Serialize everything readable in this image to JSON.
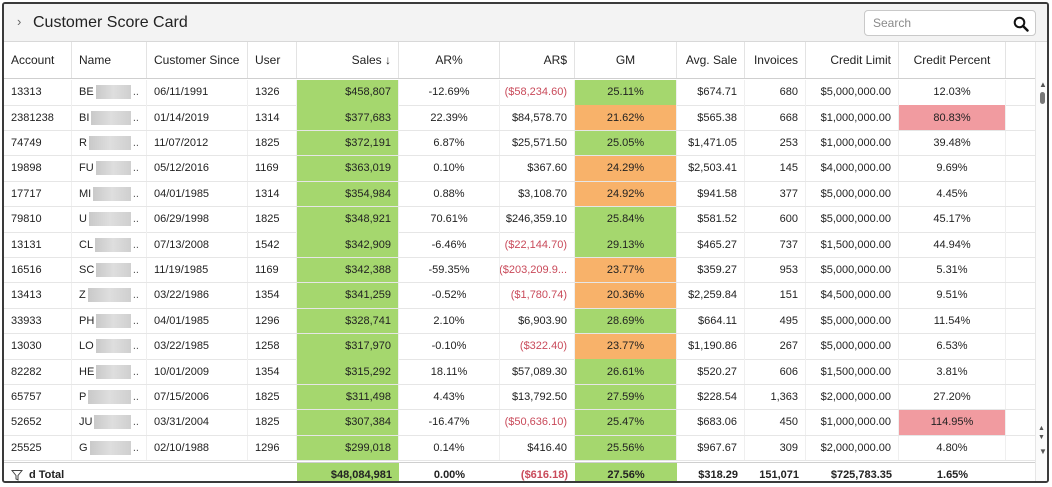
{
  "header": {
    "title": "Customer Score Card",
    "search_placeholder": "Search"
  },
  "colors": {
    "green": "#a5d76e",
    "orange": "#f8b26a",
    "red": "#f19ba0",
    "negative_text": "#c94a5a"
  },
  "columns": [
    "Account",
    "Name",
    "Customer Since",
    "User",
    "Sales ↓",
    "AR%",
    "AR$",
    "GM",
    "Avg. Sale",
    "Invoices",
    "Credit Limit",
    "Credit Percent"
  ],
  "rows": [
    {
      "account": "13313",
      "name": "BE",
      "since": "06/11/1991",
      "user": "1326",
      "sales": "$458,807",
      "arpct": "-12.69%",
      "ardol": "($58,234.60)",
      "gm": "25.11%",
      "avg": "$674.71",
      "inv": "680",
      "limit": "$5,000,000.00",
      "credit": "12.03%",
      "gm_level": "green",
      "credit_level": "none",
      "ar_neg": true
    },
    {
      "account": "2381238",
      "name": "BI",
      "since": "01/14/2019",
      "user": "1314",
      "sales": "$377,683",
      "arpct": "22.39%",
      "ardol": "$84,578.70",
      "gm": "21.62%",
      "avg": "$565.38",
      "inv": "668",
      "limit": "$1,000,000.00",
      "credit": "80.83%",
      "gm_level": "orange",
      "credit_level": "red",
      "ar_neg": false
    },
    {
      "account": "74749",
      "name": "R",
      "since": "11/07/2012",
      "user": "1825",
      "sales": "$372,191",
      "arpct": "6.87%",
      "ardol": "$25,571.50",
      "gm": "25.05%",
      "avg": "$1,471.05",
      "inv": "253",
      "limit": "$1,000,000.00",
      "credit": "39.48%",
      "gm_level": "green",
      "credit_level": "none",
      "ar_neg": false
    },
    {
      "account": "19898",
      "name": "FU",
      "since": "05/12/2016",
      "user": "1169",
      "sales": "$363,019",
      "arpct": "0.10%",
      "ardol": "$367.60",
      "gm": "24.29%",
      "avg": "$2,503.41",
      "inv": "145",
      "limit": "$4,000,000.00",
      "credit": "9.69%",
      "gm_level": "orange",
      "credit_level": "none",
      "ar_neg": false
    },
    {
      "account": "17717",
      "name": "MI",
      "since": "04/01/1985",
      "user": "1314",
      "sales": "$354,984",
      "arpct": "0.88%",
      "ardol": "$3,108.70",
      "gm": "24.92%",
      "avg": "$941.58",
      "inv": "377",
      "limit": "$5,000,000.00",
      "credit": "4.45%",
      "gm_level": "orange",
      "credit_level": "none",
      "ar_neg": false
    },
    {
      "account": "79810",
      "name": "U",
      "since": "06/29/1998",
      "user": "1825",
      "sales": "$348,921",
      "arpct": "70.61%",
      "ardol": "$246,359.10",
      "gm": "25.84%",
      "avg": "$581.52",
      "inv": "600",
      "limit": "$5,000,000.00",
      "credit": "45.17%",
      "gm_level": "green",
      "credit_level": "none",
      "ar_neg": false
    },
    {
      "account": "13131",
      "name": "CL",
      "since": "07/13/2008",
      "user": "1542",
      "sales": "$342,909",
      "arpct": "-6.46%",
      "ardol": "($22,144.70)",
      "gm": "29.13%",
      "avg": "$465.27",
      "inv": "737",
      "limit": "$1,500,000.00",
      "credit": "44.94%",
      "gm_level": "green",
      "credit_level": "none",
      "ar_neg": true
    },
    {
      "account": "16516",
      "name": "SC",
      "since": "11/19/1985",
      "user": "1169",
      "sales": "$342,388",
      "arpct": "-59.35%",
      "ardol": "($203,209.9...",
      "gm": "23.77%",
      "avg": "$359.27",
      "inv": "953",
      "limit": "$5,000,000.00",
      "credit": "5.31%",
      "gm_level": "orange",
      "credit_level": "none",
      "ar_neg": true
    },
    {
      "account": "13413",
      "name": "Z",
      "since": "03/22/1986",
      "user": "1354",
      "sales": "$341,259",
      "arpct": "-0.52%",
      "ardol": "($1,780.74)",
      "gm": "20.36%",
      "avg": "$2,259.84",
      "inv": "151",
      "limit": "$4,500,000.00",
      "credit": "9.51%",
      "gm_level": "orange",
      "credit_level": "none",
      "ar_neg": true
    },
    {
      "account": "33933",
      "name": "PH",
      "since": "04/01/1985",
      "user": "1296",
      "sales": "$328,741",
      "arpct": "2.10%",
      "ardol": "$6,903.90",
      "gm": "28.69%",
      "avg": "$664.11",
      "inv": "495",
      "limit": "$5,000,000.00",
      "credit": "11.54%",
      "gm_level": "green",
      "credit_level": "none",
      "ar_neg": false
    },
    {
      "account": "13030",
      "name": "LO",
      "since": "03/22/1985",
      "user": "1258",
      "sales": "$317,970",
      "arpct": "-0.10%",
      "ardol": "($322.40)",
      "gm": "23.77%",
      "avg": "$1,190.86",
      "inv": "267",
      "limit": "$5,000,000.00",
      "credit": "6.53%",
      "gm_level": "orange",
      "credit_level": "none",
      "ar_neg": true
    },
    {
      "account": "82282",
      "name": "HE",
      "since": "10/01/2009",
      "user": "1354",
      "sales": "$315,292",
      "arpct": "18.11%",
      "ardol": "$57,089.30",
      "gm": "26.61%",
      "avg": "$520.27",
      "inv": "606",
      "limit": "$1,500,000.00",
      "credit": "3.81%",
      "gm_level": "green",
      "credit_level": "none",
      "ar_neg": false
    },
    {
      "account": "65757",
      "name": "P",
      "since": "07/15/2006",
      "user": "1825",
      "sales": "$311,498",
      "arpct": "4.43%",
      "ardol": "$13,792.50",
      "gm": "27.59%",
      "avg": "$228.54",
      "inv": "1,363",
      "limit": "$2,000,000.00",
      "credit": "27.20%",
      "gm_level": "green",
      "credit_level": "none",
      "ar_neg": false
    },
    {
      "account": "52652",
      "name": "JU",
      "since": "03/31/2004",
      "user": "1825",
      "sales": "$307,384",
      "arpct": "-16.47%",
      "ardol": "($50,636.10)",
      "gm": "25.47%",
      "avg": "$683.06",
      "inv": "450",
      "limit": "$1,000,000.00",
      "credit": "114.95%",
      "gm_level": "green",
      "credit_level": "red",
      "ar_neg": true
    },
    {
      "account": "25525",
      "name": "G",
      "since": "02/10/1988",
      "user": "1296",
      "sales": "$299,018",
      "arpct": "0.14%",
      "ardol": "$416.40",
      "gm": "25.56%",
      "avg": "$967.67",
      "inv": "309",
      "limit": "$2,000,000.00",
      "credit": "4.80%",
      "gm_level": "green",
      "credit_level": "none",
      "ar_neg": false
    }
  ],
  "totals": {
    "label": "d Total",
    "sales": "$48,084,981",
    "arpct": "0.00%",
    "ardol": "($616.18)",
    "gm": "27.56%",
    "avg": "$318.29",
    "inv": "151,071",
    "limit": "$725,783.35",
    "credit": "1.65%"
  }
}
